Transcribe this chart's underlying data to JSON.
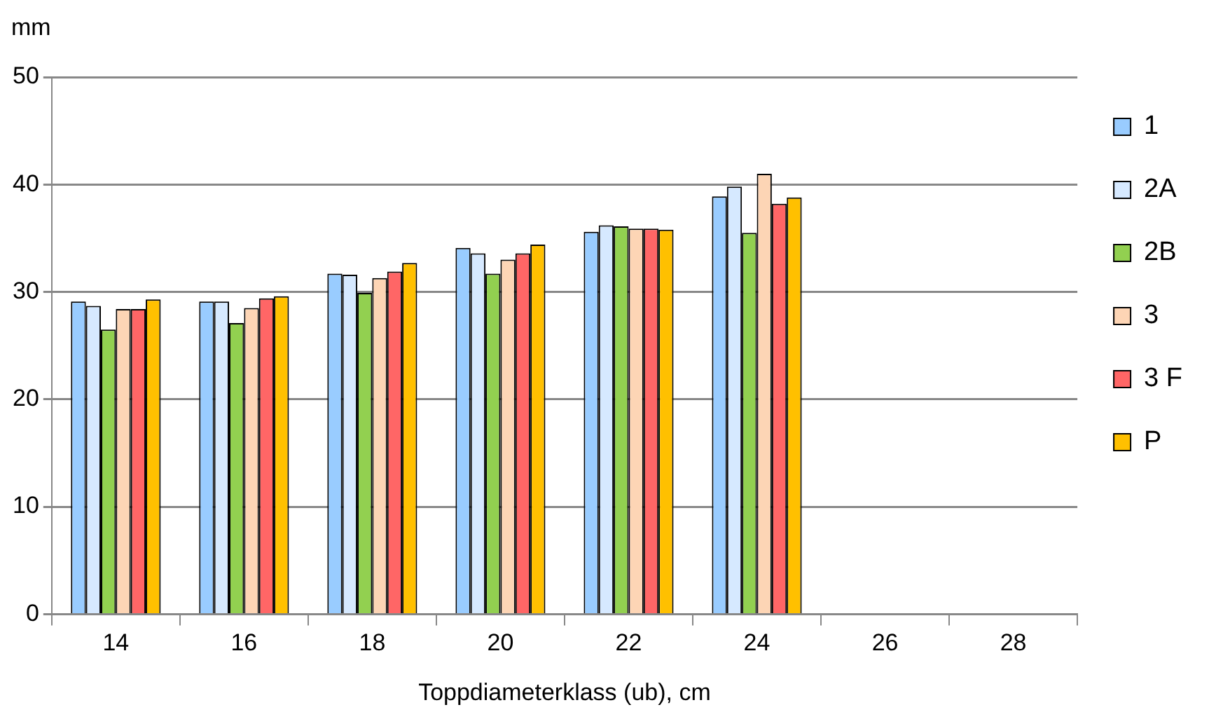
{
  "chart_data": {
    "type": "bar",
    "xlabel": "Toppdiameterklass (ub), cm",
    "ylabel": "mm",
    "categories": [
      "14",
      "16",
      "18",
      "20",
      "22",
      "24",
      "26",
      "28"
    ],
    "series": [
      {
        "name": "1",
        "color": "#99ccff",
        "values": [
          29.1,
          29.1,
          31.7,
          34.1,
          35.6,
          38.9,
          null,
          null
        ]
      },
      {
        "name": "2A",
        "color": "#d6e9ff",
        "values": [
          28.7,
          29.1,
          31.6,
          33.6,
          36.2,
          39.8,
          null,
          null
        ]
      },
      {
        "name": "2B",
        "color": "#92d050",
        "values": [
          26.5,
          27.1,
          29.9,
          31.7,
          36.1,
          35.5,
          null,
          null
        ]
      },
      {
        "name": "3",
        "color": "#fdd5b5",
        "values": [
          28.4,
          28.5,
          31.3,
          33.0,
          35.9,
          41.0,
          null,
          null
        ]
      },
      {
        "name": "3 F",
        "color": "#ff6666",
        "values": [
          28.4,
          29.4,
          31.9,
          33.6,
          35.9,
          38.2,
          null,
          null
        ]
      },
      {
        "name": "P",
        "color": "#ffc000",
        "values": [
          29.3,
          29.6,
          32.7,
          34.4,
          35.8,
          38.8,
          null,
          null
        ]
      }
    ],
    "ylim": [
      0,
      50
    ],
    "yticks": [
      0,
      10,
      20,
      30,
      40,
      50
    ],
    "grid": "y",
    "legend": "right"
  }
}
